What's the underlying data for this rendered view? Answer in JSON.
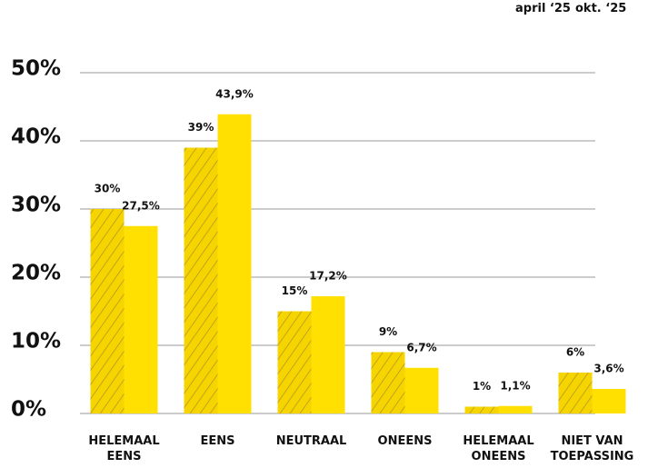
{
  "chart_data": {
    "type": "bar",
    "categories": [
      "HELEMAAL EENS",
      "EENS",
      "NEUTRAAL",
      "ONEENS",
      "HELEMAAL ONEENS",
      "NIET VAN TOEPASSING"
    ],
    "series": [
      {
        "name": "april ‘25",
        "color": "#fbd900",
        "hatch": true,
        "values": [
          30,
          39,
          15,
          9,
          1,
          6
        ],
        "value_labels": [
          "30%",
          "39%",
          "15%",
          "9%",
          "1%",
          "6%"
        ]
      },
      {
        "name": "okt. ‘25",
        "color": "#ffe000",
        "hatch": false,
        "values": [
          27.5,
          43.9,
          17.2,
          6.7,
          1.1,
          3.6
        ],
        "value_labels": [
          "27,5%",
          "43,9%",
          "17,2%",
          "6,7%",
          "1,1%",
          "3,6%"
        ]
      }
    ],
    "ylim": [
      0,
      50
    ],
    "yticks": [
      {
        "value": 0,
        "label": "0%"
      },
      {
        "value": 10,
        "label": "10%"
      },
      {
        "value": 20,
        "label": "20%"
      },
      {
        "value": 30,
        "label": "30%"
      },
      {
        "value": 40,
        "label": "40%"
      },
      {
        "value": 50,
        "label": "50%"
      }
    ],
    "grid": true,
    "legend": "top-right"
  }
}
